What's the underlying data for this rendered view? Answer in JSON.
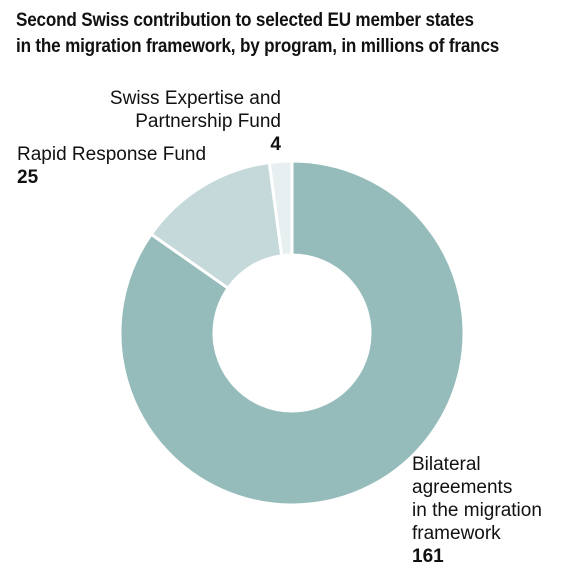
{
  "chart_data": {
    "type": "pie",
    "title": "Second Swiss contribution to selected EU member states\nin the migration framework, by program, in millions of francs",
    "slices": [
      {
        "label": "Bilateral agreements in the migration framework",
        "label_lines": [
          "Bilateral",
          "agreements",
          "in the migration",
          "framework"
        ],
        "value": 161,
        "value_text": "161",
        "color": "#95bcbb"
      },
      {
        "label": "Rapid Response Fund",
        "label_lines": [
          "Rapid Response Fund"
        ],
        "value": 25,
        "value_text": "25",
        "color": "#c5d9da"
      },
      {
        "label": "Swiss Expertise and Partnership Fund",
        "label_lines": [
          "Swiss Expertise and",
          "Partnership Fund"
        ],
        "value": 4,
        "value_text": "4",
        "color": "#e8eff1"
      }
    ],
    "donut": true,
    "start": "12 o'clock",
    "direction": "clockwise",
    "label_positions": [
      "bottom-right",
      "top-left",
      "top"
    ]
  }
}
